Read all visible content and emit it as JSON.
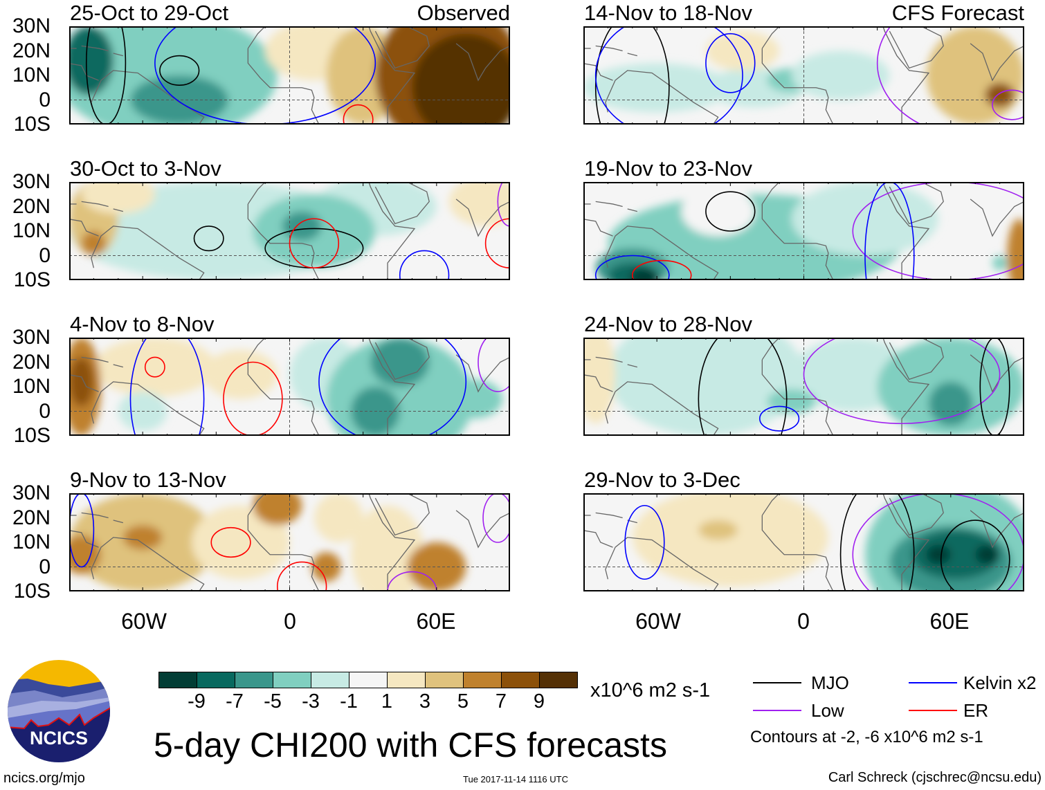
{
  "title": "5-day CHI200 with CFS forecasts",
  "left_header": "Observed",
  "right_header": "CFS Forecast",
  "lat_labels": [
    "30N",
    "20N",
    "10N",
    "0",
    "10S"
  ],
  "lon_labels": [
    "60W",
    "0",
    "60E"
  ],
  "colors": [
    "#023d35",
    "#08695f",
    "#3a968b",
    "#80cfc0",
    "#c7eae4",
    "#f5f5f5",
    "#f5e7c1",
    "#dfc27d",
    "#bf812d",
    "#8c510a",
    "#543005"
  ],
  "contour_colors": {
    "mjo": "#000000",
    "kelvin": "#0000ff",
    "low": "#a020f0",
    "er": "#ff0000"
  },
  "colorbar": {
    "ticks": [
      "-9",
      "-7",
      "-5",
      "-3",
      "-1",
      "1",
      "3",
      "5",
      "7",
      "9"
    ],
    "units": "x10^6 m2 s-1"
  },
  "legend": {
    "mjo": "MJO",
    "kelvin": "Kelvin x2",
    "low": "Low",
    "er": "ER",
    "note": "Contours at -2, -6 x10^6 m2 s-1"
  },
  "footer": {
    "url": "ncics.org/mjo",
    "timestamp": "Tue 2017-11-14 1116 UTC",
    "credit": "Carl Schreck (cjschrec@ncsu.edu)",
    "logo_text": "NCICS"
  },
  "panels": [
    {
      "title": "25-Oct to 29-Oct",
      "col": 0,
      "row": 0,
      "blobs": [
        [
          -50,
          10,
          45,
          25,
          3
        ],
        [
          -82,
          16,
          10,
          14,
          1
        ],
        [
          -45,
          0,
          20,
          10,
          2
        ],
        [
          10,
          20,
          20,
          12,
          6
        ],
        [
          30,
          10,
          15,
          20,
          7
        ],
        [
          65,
          10,
          30,
          30,
          9
        ],
        [
          72,
          5,
          22,
          22,
          10
        ]
      ],
      "contours": [
        [
          "kelvin",
          -10,
          15,
          45,
          25
        ],
        [
          "mjo",
          -45,
          12,
          8,
          6
        ],
        [
          "mjo",
          -75,
          15,
          8,
          25
        ],
        [
          "er",
          28,
          -8,
          6,
          6
        ]
      ]
    },
    {
      "title": "30-Oct to 3-Nov",
      "col": 0,
      "row": 1,
      "blobs": [
        [
          -30,
          10,
          60,
          20,
          4
        ],
        [
          35,
          20,
          25,
          12,
          4
        ],
        [
          10,
          10,
          25,
          15,
          3
        ],
        [
          5,
          12,
          8,
          6,
          2
        ],
        [
          -80,
          15,
          10,
          15,
          7
        ],
        [
          -80,
          5,
          5,
          5,
          8
        ],
        [
          -70,
          25,
          15,
          8,
          6
        ],
        [
          80,
          22,
          15,
          10,
          6
        ]
      ],
      "contours": [
        [
          "mjo",
          -33,
          7,
          6,
          5
        ],
        [
          "mjo",
          10,
          3,
          20,
          8
        ],
        [
          "er",
          10,
          5,
          10,
          10
        ],
        [
          "kelvin",
          55,
          -8,
          10,
          10
        ],
        [
          "er",
          90,
          5,
          10,
          10
        ],
        [
          "low",
          90,
          22,
          5,
          10
        ]
      ]
    },
    {
      "title": "4-Nov to 8-Nov",
      "col": 0,
      "row": 2,
      "blobs": [
        [
          -55,
          18,
          25,
          12,
          6
        ],
        [
          -20,
          15,
          15,
          10,
          6
        ],
        [
          15,
          15,
          15,
          15,
          4
        ],
        [
          -60,
          0,
          10,
          8,
          4
        ],
        [
          45,
          5,
          30,
          25,
          3
        ],
        [
          45,
          20,
          12,
          10,
          2
        ],
        [
          35,
          0,
          10,
          10,
          2
        ],
        [
          75,
          5,
          12,
          8,
          3
        ],
        [
          -85,
          10,
          8,
          20,
          8
        ],
        [
          -85,
          12,
          5,
          10,
          9
        ]
      ],
      "contours": [
        [
          "er",
          -55,
          18,
          4,
          4
        ],
        [
          "kelvin",
          -50,
          5,
          15,
          30
        ],
        [
          "er",
          -15,
          5,
          12,
          15
        ],
        [
          "kelvin",
          42,
          12,
          30,
          25
        ],
        [
          "low",
          85,
          20,
          8,
          12
        ]
      ]
    },
    {
      "title": "9-Nov to 13-Nov",
      "col": 0,
      "row": 3,
      "blobs": [
        [
          -60,
          10,
          30,
          20,
          7
        ],
        [
          40,
          5,
          15,
          20,
          6
        ],
        [
          20,
          20,
          10,
          10,
          6
        ],
        [
          -20,
          10,
          20,
          15,
          6
        ],
        [
          -85,
          5,
          8,
          8,
          8
        ],
        [
          -60,
          12,
          8,
          5,
          8
        ],
        [
          60,
          0,
          12,
          10,
          8
        ],
        [
          15,
          0,
          6,
          6,
          8
        ],
        [
          -5,
          25,
          10,
          8,
          8
        ]
      ],
      "contours": [
        [
          "er",
          -24,
          10,
          8,
          6
        ],
        [
          "er",
          5,
          -8,
          10,
          10
        ],
        [
          "low",
          50,
          -10,
          10,
          8
        ],
        [
          "low",
          85,
          20,
          6,
          10
        ],
        [
          "kelvin",
          -85,
          15,
          5,
          15
        ]
      ]
    },
    {
      "title": "14-Nov to 18-Nov",
      "col": 1,
      "row": 0,
      "blobs": [
        [
          -60,
          5,
          30,
          10,
          4
        ],
        [
          -20,
          5,
          20,
          8,
          4
        ],
        [
          -5,
          8,
          10,
          5,
          3
        ],
        [
          15,
          10,
          20,
          10,
          4
        ],
        [
          -25,
          20,
          15,
          8,
          6
        ],
        [
          70,
          10,
          20,
          20,
          7
        ],
        [
          80,
          2,
          6,
          5,
          9
        ]
      ],
      "contours": [
        [
          "mjo",
          -70,
          5,
          15,
          30
        ],
        [
          "kelvin",
          -55,
          10,
          30,
          25
        ],
        [
          "kelvin",
          -30,
          15,
          10,
          12
        ],
        [
          "low",
          70,
          15,
          40,
          30
        ],
        [
          "low",
          85,
          -2,
          8,
          6
        ]
      ]
    },
    {
      "title": "19-Nov to 23-Nov",
      "col": 1,
      "row": 1,
      "blobs": [
        [
          -20,
          5,
          60,
          20,
          3
        ],
        [
          25,
          15,
          30,
          15,
          4
        ],
        [
          -35,
          18,
          15,
          10,
          5
        ],
        [
          -70,
          -5,
          15,
          8,
          2
        ],
        [
          -70,
          -8,
          10,
          5,
          1
        ],
        [
          -65,
          -9,
          6,
          4,
          0
        ],
        [
          88,
          0,
          5,
          15,
          8
        ],
        [
          80,
          -3,
          3,
          3,
          3
        ]
      ],
      "contours": [
        [
          "mjo",
          -30,
          18,
          10,
          8
        ],
        [
          "kelvin",
          -70,
          -8,
          15,
          8
        ],
        [
          "er",
          -58,
          -8,
          12,
          6
        ],
        [
          "low",
          60,
          10,
          40,
          20
        ],
        [
          "kelvin",
          35,
          0,
          10,
          30
        ],
        [
          "mjo",
          20,
          35,
          10,
          5
        ]
      ]
    },
    {
      "title": "24-Nov to 28-Nov",
      "col": 1,
      "row": 2,
      "blobs": [
        [
          -40,
          15,
          40,
          25,
          4
        ],
        [
          20,
          15,
          25,
          15,
          4
        ],
        [
          60,
          10,
          30,
          20,
          3
        ],
        [
          60,
          3,
          9,
          9,
          2
        ],
        [
          -5,
          4,
          10,
          5,
          3
        ],
        [
          -85,
          15,
          8,
          20,
          6
        ]
      ],
      "contours": [
        [
          "mjo",
          -25,
          5,
          18,
          30
        ],
        [
          "kelvin",
          -10,
          -3,
          8,
          5
        ],
        [
          "low",
          40,
          15,
          40,
          20
        ],
        [
          "mjo",
          78,
          10,
          6,
          20
        ]
      ]
    },
    {
      "title": "29-Nov to 3-Dec",
      "col": 1,
      "row": 3,
      "blobs": [
        [
          -30,
          12,
          40,
          20,
          6
        ],
        [
          -35,
          15,
          8,
          4,
          7
        ],
        [
          60,
          5,
          35,
          30,
          3
        ],
        [
          60,
          2,
          25,
          15,
          2
        ],
        [
          62,
          5,
          18,
          10,
          1
        ],
        [
          55,
          5,
          5,
          4,
          0
        ],
        [
          75,
          5,
          5,
          4,
          0
        ]
      ],
      "contours": [
        [
          "mjo",
          70,
          3,
          14,
          16
        ],
        [
          "low",
          55,
          5,
          35,
          25
        ],
        [
          "kelvin",
          -65,
          10,
          8,
          15
        ],
        [
          "mjo",
          30,
          5,
          15,
          30
        ]
      ]
    }
  ]
}
